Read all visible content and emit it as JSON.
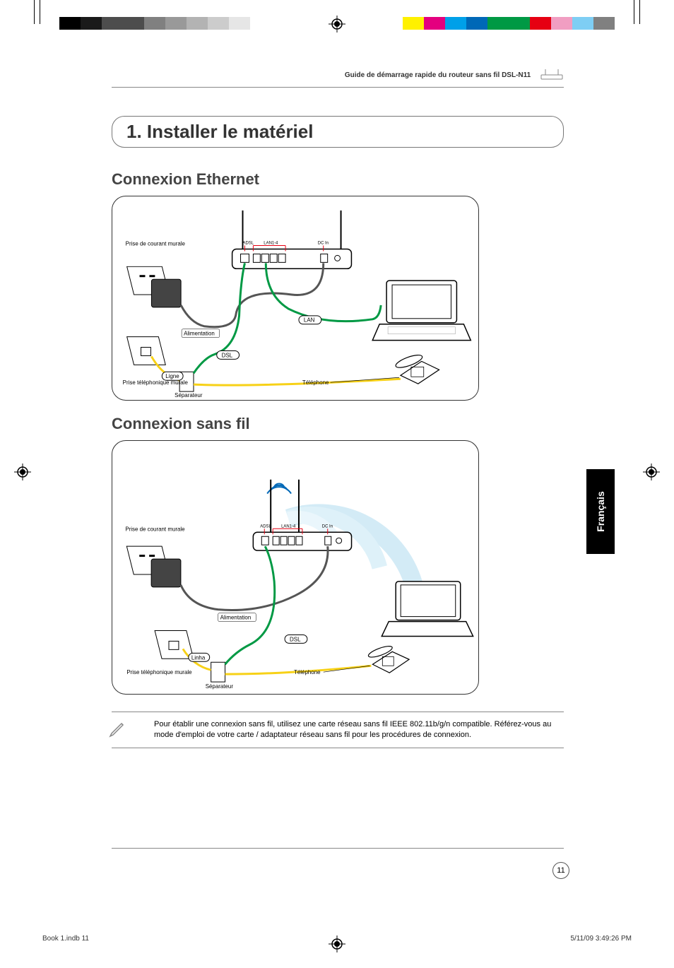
{
  "colors": {
    "accent_blue": "#5bb5e8",
    "wire_green": "#009944",
    "wire_yellow": "#f7d117",
    "wire_gray": "#555555",
    "text": "#333333",
    "border": "#333333",
    "magenta": "#e4007f",
    "cyan": "#00a0e9",
    "yellow_sw": "#fff100",
    "green_sw": "#009944",
    "blue_sw": "#0068b7",
    "red_sw": "#e60012",
    "pink_sw": "#f19ec2",
    "lblue_sw": "#7ecef4"
  },
  "running_head": "Guide de démarrage rapide du routeur sans fil DSL-N11",
  "section_number_title": "1. Installer le matériel",
  "heading_ethernet": "Connexion Ethernet",
  "heading_wireless": "Connexion sans fil",
  "diagram_labels": {
    "wall_power": "Prise de courant murale",
    "wall_phone": "Prise téléphonique murale",
    "power": "Alimentation",
    "line": "Ligne",
    "line_pt": "Linha",
    "splitter": "Séparateur",
    "phone": "Téléphone",
    "dsl": "DSL",
    "lan": "LAN",
    "adsl_port": "ADSL",
    "lan_ports": "LAN1-4",
    "dcin": "DC In"
  },
  "note_text": "Pour établir une connexion sans fil, utilisez une carte réseau sans fil IEEE 802.11b/g/n compatible. Référez-vous au mode d'emploi de votre carte / adaptateur réseau sans fil pour les procédures de connexion.",
  "language_tab": "Français",
  "page_number": "11",
  "slug_left": "Book 1.indb   11",
  "slug_right": "5/11/09   3:49:26 PM",
  "print_bars": {
    "left": [
      "#000000",
      "#1a1a1a",
      "#4d4d4d",
      "#4d4d4d",
      "#808080",
      "#999999",
      "#b3b3b3",
      "#cccccc",
      "#e6e6e6"
    ],
    "right": [
      "#fff100",
      "#e4007f",
      "#00a0e9",
      "#0068b7",
      "#009944",
      "#009944",
      "#e60012",
      "#f19ec2",
      "#7ecef4",
      "#808080"
    ]
  }
}
